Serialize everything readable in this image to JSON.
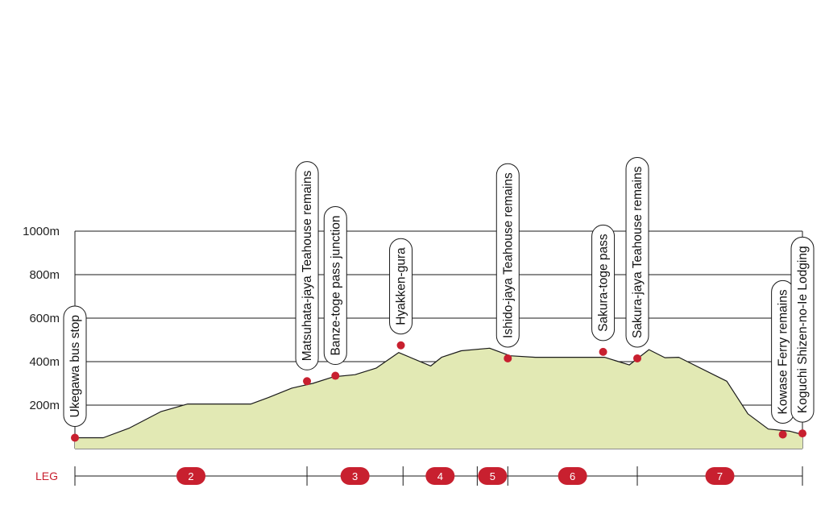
{
  "chart_data": {
    "type": "area",
    "title": "",
    "xlabel": "",
    "ylabel": "",
    "y_unit": "m",
    "ylim": [
      0,
      1000
    ],
    "y_ticks": [
      "200m",
      "400m",
      "600m",
      "800m",
      "1000m"
    ],
    "grid": true,
    "x_domain": [
      0,
      100
    ],
    "profile": {
      "x": [
        0,
        3.9,
        7.5,
        11.8,
        15.5,
        19.6,
        24.2,
        26.6,
        29.8,
        32.7,
        35.5,
        38.5,
        41.4,
        44.5,
        48.9,
        50.4,
        53.1,
        57.0,
        59.8,
        63.3,
        65.3,
        66.4,
        76.2,
        78.9,
        71.2,
        72.8,
        81.1,
        83.0,
        89.6,
        92.5,
        95.3,
        98.3,
        100
      ],
      "y": [
        50,
        50,
        95,
        170,
        205,
        205,
        205,
        235,
        278,
        300,
        330,
        340,
        370,
        442,
        380,
        420,
        450,
        462,
        427,
        420,
        420,
        420,
        385,
        455,
        420,
        420,
        418,
        420,
        310,
        160,
        90,
        80,
        65
      ]
    },
    "waypoints": [
      {
        "name": "Ukegawa bus stop",
        "x": 0,
        "y": 50
      },
      {
        "name": "Matsuhata-jaya Teahouse remains",
        "x": 31.9,
        "y": 310
      },
      {
        "name": "Banze-toge pass junction",
        "x": 35.8,
        "y": 335
      },
      {
        "name": "Hyakken-gura",
        "x": 44.8,
        "y": 475
      },
      {
        "name": "Ishido-jaya Teahouse remains",
        "x": 59.5,
        "y": 415
      },
      {
        "name": "Sakura-toge pass",
        "x": 72.6,
        "y": 445
      },
      {
        "name": "Sakura-jaya Teahouse remains",
        "x": 77.3,
        "y": 415
      },
      {
        "name": "Kowase Ferry remains",
        "x": 97.3,
        "y": 65
      },
      {
        "name": "Koguchi Shizen-no-Ie Lodging",
        "x": 100,
        "y": 70
      }
    ],
    "legs_label": "LEG",
    "legs": [
      {
        "label": "2",
        "start": 0,
        "end": 31.9
      },
      {
        "label": "3",
        "start": 31.9,
        "end": 45.1
      },
      {
        "label": "4",
        "start": 45.1,
        "end": 55.3
      },
      {
        "label": "5",
        "start": 55.3,
        "end": 59.5
      },
      {
        "label": "6",
        "start": 59.5,
        "end": 77.3
      },
      {
        "label": "7",
        "start": 77.3,
        "end": 100
      }
    ],
    "colors": {
      "fill": "#e2e9b4",
      "line": "#1a1a1a",
      "grid": "#1a1a1a",
      "marker": "#c8202f",
      "leg_badge": "#c8202f",
      "leg_label": "#c8202f"
    }
  }
}
